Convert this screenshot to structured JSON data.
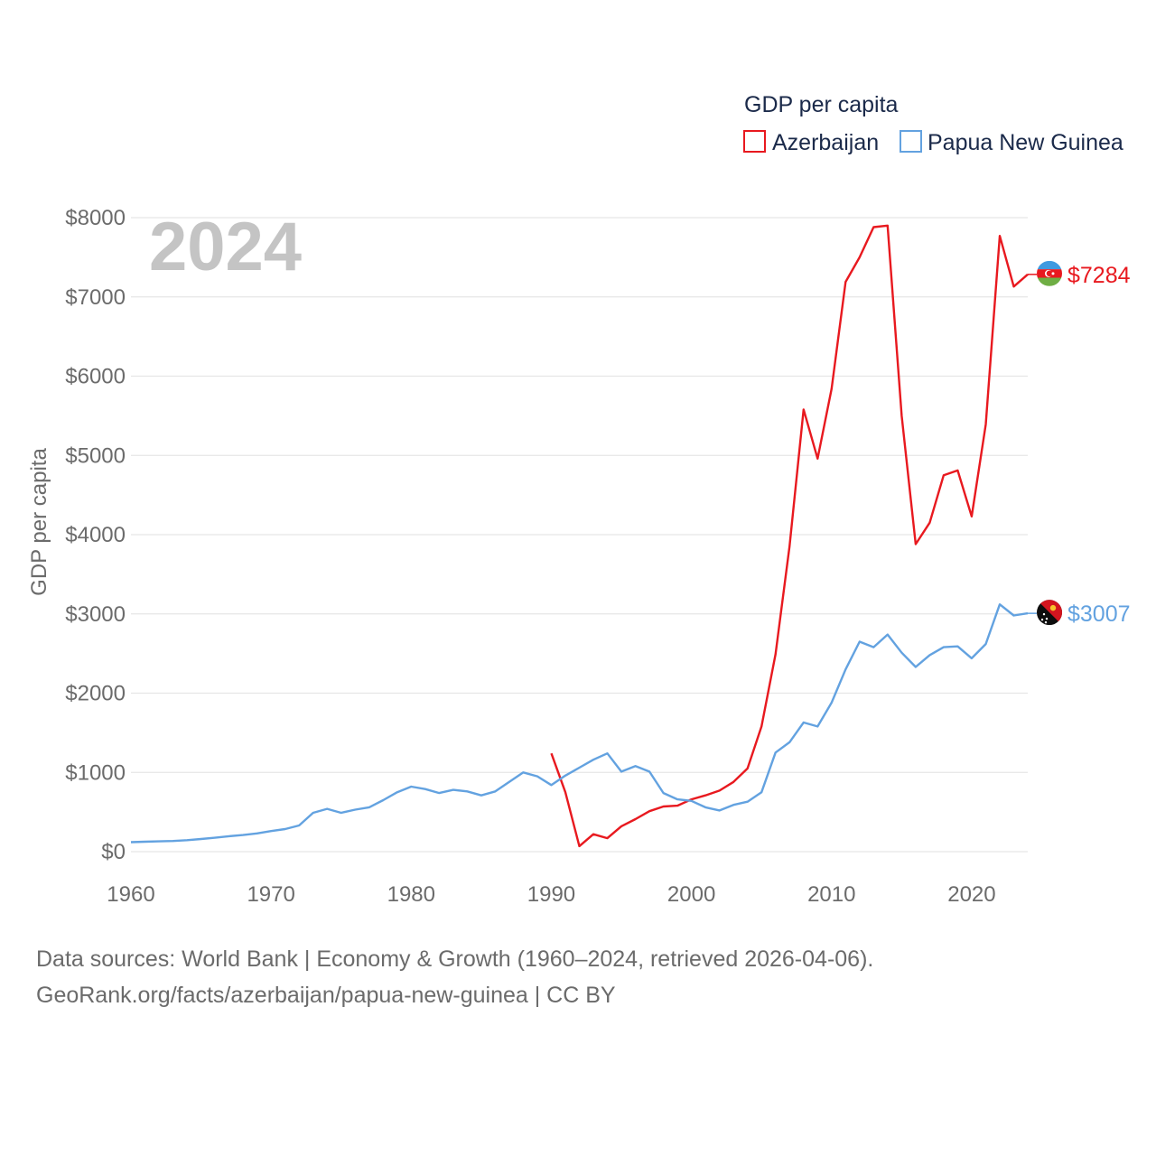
{
  "chart_data": {
    "type": "line",
    "title": "",
    "year_label": "2024",
    "ylabel": "GDP per capita",
    "xlabel": "",
    "xlim": [
      1960,
      2024
    ],
    "ylim": [
      0,
      8000
    ],
    "x_ticks": [
      1960,
      1970,
      1980,
      1990,
      2000,
      2010,
      2020
    ],
    "x_tick_labels": [
      "1960",
      "1970",
      "1980",
      "1990",
      "2000",
      "2010",
      "2020"
    ],
    "y_ticks": [
      0,
      1000,
      2000,
      3000,
      4000,
      5000,
      6000,
      7000,
      8000
    ],
    "y_tick_labels": [
      "$0",
      "$1000",
      "$2000",
      "$3000",
      "$4000",
      "$5000",
      "$6000",
      "$7000",
      "$8000"
    ],
    "grid": true,
    "legend": {
      "title": "GDP per capita",
      "position": "top-right",
      "items": [
        "Azerbaijan",
        "Papua New Guinea"
      ]
    },
    "series": [
      {
        "name": "Azerbaijan",
        "color": "#e8191f",
        "end_label": "$7284",
        "flag": "azerbaijan-flag",
        "x": [
          1990,
          1991,
          1992,
          1993,
          1994,
          1995,
          1996,
          1997,
          1998,
          1999,
          2000,
          2001,
          2002,
          2003,
          2004,
          2005,
          2006,
          2007,
          2008,
          2009,
          2010,
          2011,
          2012,
          2013,
          2014,
          2015,
          2016,
          2017,
          2018,
          2019,
          2020,
          2021,
          2022,
          2023,
          2024
        ],
        "values": [
          1240,
          750,
          70,
          220,
          170,
          320,
          410,
          510,
          570,
          580,
          660,
          710,
          770,
          880,
          1050,
          1580,
          2490,
          3850,
          5580,
          4960,
          5840,
          7190,
          7500,
          7880,
          7900,
          5500,
          3880,
          4150,
          4750,
          4810,
          4230,
          5390,
          7770,
          7130,
          7284
        ]
      },
      {
        "name": "Papua New Guinea",
        "color": "#63a2e0",
        "end_label": "$3007",
        "flag": "papua-new-guinea-flag",
        "x": [
          1960,
          1961,
          1962,
          1963,
          1964,
          1965,
          1966,
          1967,
          1968,
          1969,
          1970,
          1971,
          1972,
          1973,
          1974,
          1975,
          1976,
          1977,
          1978,
          1979,
          1980,
          1981,
          1982,
          1983,
          1984,
          1985,
          1986,
          1987,
          1988,
          1989,
          1990,
          1991,
          1992,
          1993,
          1994,
          1995,
          1996,
          1997,
          1998,
          1999,
          2000,
          2001,
          2002,
          2003,
          2004,
          2005,
          2006,
          2007,
          2008,
          2009,
          2010,
          2011,
          2012,
          2013,
          2014,
          2015,
          2016,
          2017,
          2018,
          2019,
          2020,
          2021,
          2022,
          2023,
          2024
        ],
        "values": [
          120,
          125,
          130,
          135,
          145,
          160,
          175,
          195,
          210,
          230,
          260,
          285,
          330,
          490,
          540,
          490,
          530,
          560,
          650,
          750,
          820,
          790,
          740,
          780,
          760,
          710,
          760,
          880,
          1000,
          950,
          840,
          960,
          1060,
          1160,
          1240,
          1010,
          1080,
          1010,
          740,
          660,
          640,
          560,
          520,
          590,
          630,
          750,
          1250,
          1380,
          1630,
          1580,
          1880,
          2300,
          2650,
          2580,
          2740,
          2510,
          2330,
          2480,
          2580,
          2590,
          2440,
          2620,
          3120,
          2980,
          3007
        ]
      }
    ]
  },
  "footer": {
    "line1": "Data sources: World Bank | Economy & Growth (1960–2024, retrieved 2026-04-06).",
    "line2": "GeoRank.org/facts/azerbaijan/papua-new-guinea | CC BY"
  }
}
